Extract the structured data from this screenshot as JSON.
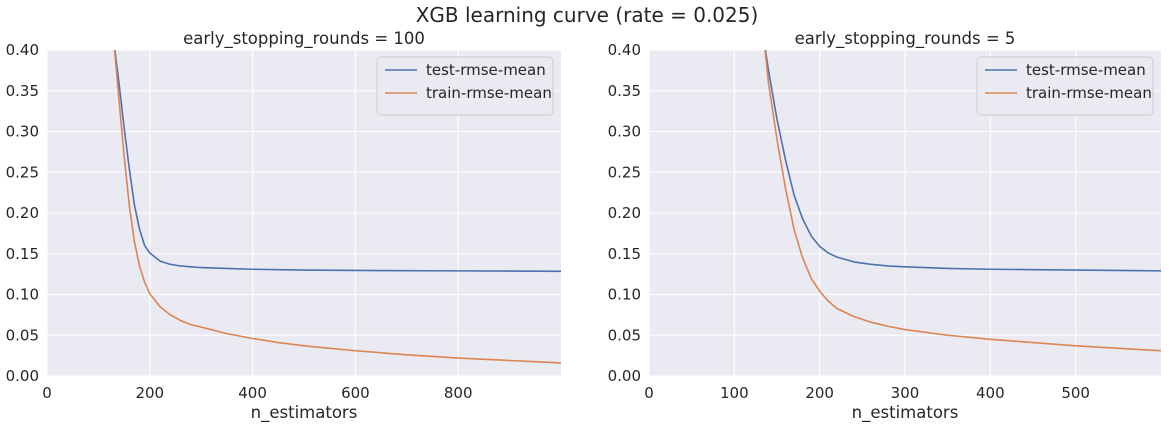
{
  "figure": {
    "title": "XGB learning curve (rate = 0.025)"
  },
  "colors": {
    "plot_background": "#eaeaf2",
    "grid": "#ffffff",
    "test_series": "#4c72b0",
    "train_series": "#dd8452"
  },
  "chart_data": [
    {
      "type": "line",
      "title": "early_stopping_rounds = 100",
      "xlabel": "n_estimators",
      "ylabel": "",
      "xlim": [
        0,
        1000
      ],
      "ylim": [
        0,
        0.4
      ],
      "xticks": [
        0,
        200,
        400,
        600,
        800
      ],
      "xtick_labels": [
        "0",
        "200",
        "400",
        "600",
        "800"
      ],
      "yticks": [
        0,
        0.05,
        0.1,
        0.15,
        0.2,
        0.25,
        0.3,
        0.35,
        0.4
      ],
      "ytick_labels": [
        "0.00",
        "0.05",
        "0.10",
        "0.15",
        "0.20",
        "0.25",
        "0.30",
        "0.35",
        "0.40"
      ],
      "grid": true,
      "legend": "top-right",
      "x": [
        130,
        140,
        150,
        160,
        170,
        180,
        190,
        200,
        220,
        240,
        260,
        280,
        300,
        350,
        400,
        450,
        500,
        600,
        700,
        800,
        900,
        1000
      ],
      "series": [
        {
          "name": "test-rmse-mean",
          "color": "#4c72b0",
          "values": [
            0.41,
            0.36,
            0.305,
            0.255,
            0.21,
            0.18,
            0.16,
            0.151,
            0.141,
            0.137,
            0.135,
            0.134,
            0.133,
            0.132,
            0.131,
            0.1305,
            0.13,
            0.1295,
            0.1292,
            0.129,
            0.1288,
            0.1285
          ]
        },
        {
          "name": "train-rmse-mean",
          "color": "#dd8452",
          "values": [
            0.41,
            0.34,
            0.27,
            0.21,
            0.165,
            0.135,
            0.115,
            0.101,
            0.085,
            0.075,
            0.068,
            0.063,
            0.06,
            0.052,
            0.046,
            0.041,
            0.037,
            0.031,
            0.026,
            0.022,
            0.019,
            0.016
          ]
        }
      ]
    },
    {
      "type": "line",
      "title": "early_stopping_rounds = 5",
      "xlabel": "n_estimators",
      "ylabel": "",
      "xlim": [
        0,
        600
      ],
      "ylim": [
        0,
        0.4
      ],
      "xticks": [
        0,
        100,
        200,
        300,
        400,
        500
      ],
      "xtick_labels": [
        "0",
        "100",
        "200",
        "300",
        "400",
        "500"
      ],
      "yticks": [
        0,
        0.05,
        0.1,
        0.15,
        0.2,
        0.25,
        0.3,
        0.35,
        0.4
      ],
      "ytick_labels": [
        "0.00",
        "0.05",
        "0.10",
        "0.15",
        "0.20",
        "0.25",
        "0.30",
        "0.35",
        "0.40"
      ],
      "grid": true,
      "legend": "top-right",
      "x": [
        135,
        140,
        150,
        160,
        170,
        180,
        190,
        200,
        210,
        220,
        240,
        260,
        280,
        300,
        350,
        400,
        450,
        500,
        550,
        600
      ],
      "series": [
        {
          "name": "test-rmse-mean",
          "color": "#4c72b0",
          "values": [
            0.41,
            0.375,
            0.315,
            0.265,
            0.222,
            0.193,
            0.172,
            0.159,
            0.151,
            0.146,
            0.14,
            0.137,
            0.135,
            0.134,
            0.132,
            0.131,
            0.1305,
            0.13,
            0.1295,
            0.129
          ]
        },
        {
          "name": "train-rmse-mean",
          "color": "#dd8452",
          "values": [
            0.41,
            0.36,
            0.29,
            0.23,
            0.18,
            0.145,
            0.12,
            0.104,
            0.092,
            0.083,
            0.073,
            0.066,
            0.061,
            0.057,
            0.05,
            0.045,
            0.041,
            0.037,
            0.034,
            0.031
          ]
        }
      ]
    }
  ]
}
